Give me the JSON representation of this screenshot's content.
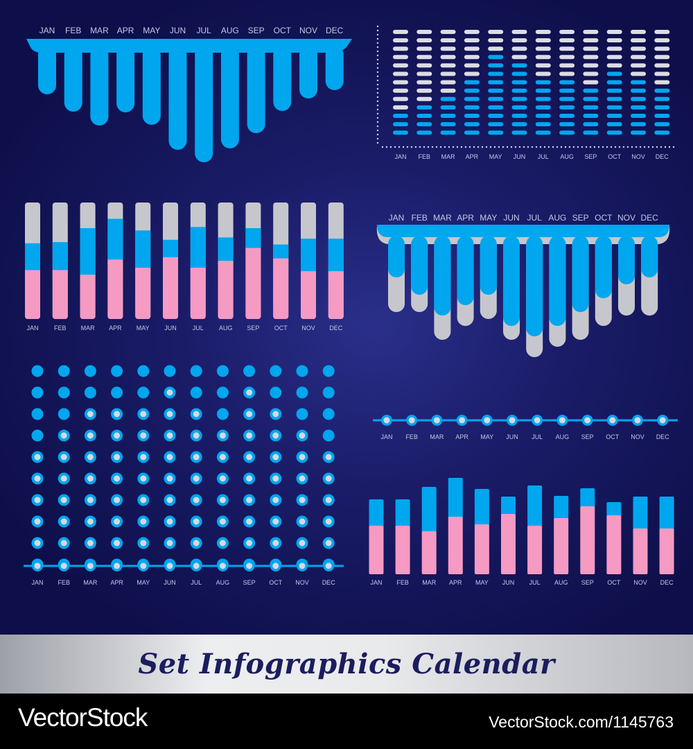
{
  "banner": {
    "title": "Set Infographics Calendar"
  },
  "footer": {
    "brand": "VectorStock",
    "image_id": "VectorStock.com/1145763"
  },
  "colors": {
    "background": "#151662",
    "blue": "#00a6ee",
    "gray": "#c6c7cc",
    "pink": "#f49ac3",
    "label": "#c4c8e6"
  },
  "chart_data": [
    {
      "type": "bar",
      "style": "hanging-drip",
      "title": "",
      "categories": [
        "JAN",
        "FEB",
        "MAR",
        "APR",
        "MAY",
        "JUN",
        "JUL",
        "AUG",
        "SEP",
        "OCT",
        "NOV",
        "DEC"
      ],
      "series": [
        {
          "values": [
            70,
            95,
            115,
            96,
            114,
            150,
            168,
            148,
            126,
            94,
            76,
            64
          ]
        }
      ]
    },
    {
      "type": "bar",
      "style": "segmented-dashes",
      "title": "",
      "categories": [
        "JAN",
        "FEB",
        "MAR",
        "APR",
        "MAY",
        "JUN",
        "JUL",
        "AUG",
        "SEP",
        "OCT",
        "NOV",
        "DEC"
      ],
      "total_segments": 13,
      "series": [
        {
          "values": [
            3,
            4,
            5,
            7,
            10,
            9,
            7,
            7,
            6,
            8,
            7,
            6
          ]
        }
      ]
    },
    {
      "type": "bar",
      "style": "stacked-capsule",
      "title": "",
      "categories": [
        "JAN",
        "FEB",
        "MAR",
        "APR",
        "MAY",
        "JUN",
        "JUL",
        "AUG",
        "SEP",
        "OCT",
        "NOV",
        "DEC"
      ],
      "ylim": [
        0,
        100
      ],
      "series": [
        {
          "values": [
            42,
            42,
            38,
            51,
            44,
            53,
            44,
            50,
            61,
            52,
            41,
            41
          ]
        },
        {
          "values": [
            23,
            24,
            40,
            35,
            32,
            15,
            35,
            20,
            17,
            12,
            28,
            28
          ]
        }
      ]
    },
    {
      "type": "bar",
      "style": "hanging-drip-overlay",
      "title": "",
      "categories": [
        "JAN",
        "FEB",
        "MAR",
        "APR",
        "MAY",
        "JUN",
        "JUL",
        "AUG",
        "SEP",
        "OCT",
        "NOV",
        "DEC"
      ],
      "series": [
        {
          "values": [
            110,
            110,
            150,
            130,
            120,
            150,
            175,
            160,
            150,
            130,
            115,
            115
          ]
        },
        {
          "values": [
            60,
            85,
            115,
            100,
            85,
            130,
            145,
            130,
            110,
            90,
            70,
            60
          ]
        }
      ]
    },
    {
      "type": "scatter",
      "style": "dot-matrix",
      "title": "",
      "categories": [
        "JAN",
        "FEB",
        "MAR",
        "APR",
        "MAY",
        "JUN",
        "JUL",
        "AUG",
        "SEP",
        "OCT",
        "NOV",
        "DEC"
      ],
      "rows": 10,
      "series": [
        {
          "values": [
            4,
            3,
            2,
            2,
            2,
            1,
            2,
            3,
            1,
            2,
            3,
            4
          ]
        }
      ]
    },
    {
      "type": "line",
      "style": "timeline",
      "title": "",
      "categories": [
        "JAN",
        "FEB",
        "MAR",
        "APR",
        "MAY",
        "JUN",
        "JUL",
        "AUG",
        "SEP",
        "OCT",
        "NOV",
        "DEC"
      ]
    },
    {
      "type": "bar",
      "style": "stacked",
      "title": "",
      "categories": [
        "JAN",
        "FEB",
        "MAR",
        "APR",
        "MAY",
        "JUN",
        "JUL",
        "AUG",
        "SEP",
        "OCT",
        "NOV",
        "DEC"
      ],
      "ylim": [
        0,
        140
      ],
      "series": [
        {
          "values": [
            70,
            70,
            62,
            83,
            72,
            87,
            70,
            81,
            98,
            85,
            66,
            66
          ]
        },
        {
          "values": [
            38,
            38,
            64,
            56,
            51,
            25,
            58,
            32,
            26,
            19,
            46,
            46
          ]
        }
      ]
    }
  ]
}
